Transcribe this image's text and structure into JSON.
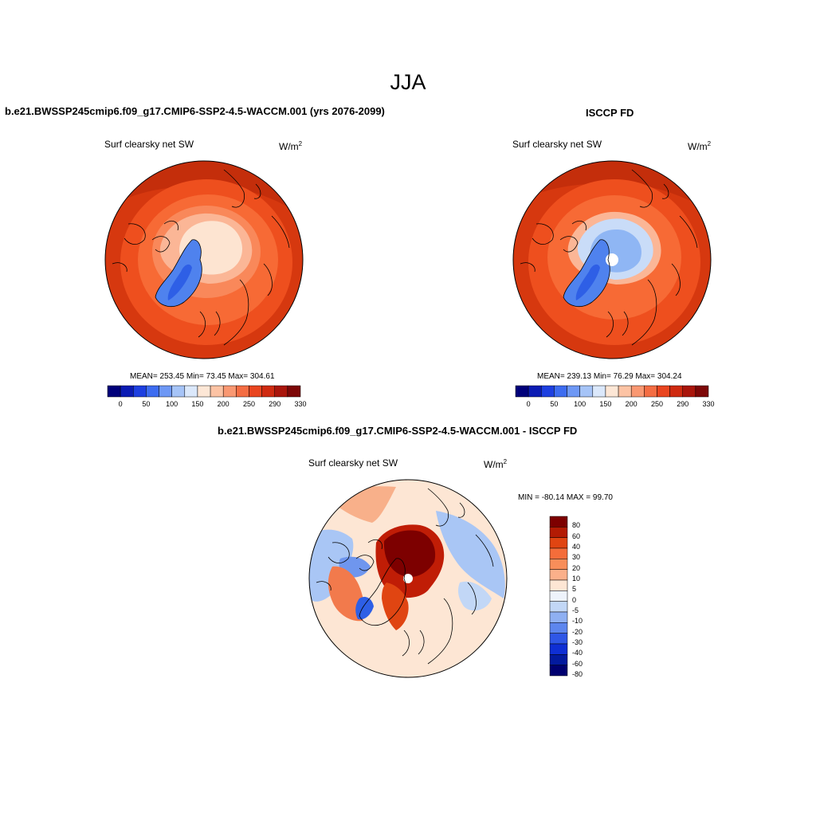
{
  "page": {
    "title": "JJA"
  },
  "panels": [
    {
      "id": "model",
      "case_title": "b.e21.BWSSP245cmip6.f09_g17.CMIP6-SSP2-4.5-WACCM.001 (yrs 2076-2099)",
      "variable": "Surf clearsky net SW",
      "units_base": "W/m",
      "units_exp": "2",
      "stats": "MEAN= 253.45  Min=  73.45  Max= 304.61",
      "mean": 253.45,
      "min": 73.45,
      "max": 304.61
    },
    {
      "id": "obs",
      "case_title": "ISCCP FD",
      "variable": "Surf clearsky net SW",
      "units_base": "W/m",
      "units_exp": "2",
      "stats": "MEAN= 239.13  Min=  76.29  Max= 304.24",
      "mean": 239.13,
      "min": 76.29,
      "max": 304.24
    },
    {
      "id": "diff",
      "case_title": "b.e21.BWSSP245cmip6.f09_g17.CMIP6-SSP2-4.5-WACCM.001 - ISCCP FD",
      "variable": "Surf clearsky net SW",
      "units_base": "W/m",
      "units_exp": "2",
      "stats": "MIN = -80.14 MAX =  99.70",
      "min": -80.14,
      "max": 99.7
    }
  ],
  "abs_colorbar": {
    "colors": [
      "#00007a",
      "#0b1bb3",
      "#1d3fe0",
      "#3d6cf0",
      "#6e98f5",
      "#a6c4f7",
      "#dbe8fb",
      "#fde7d6",
      "#fcc3a4",
      "#f99872",
      "#f46d43",
      "#e9451f",
      "#cf2a10",
      "#a9150b",
      "#7d0707"
    ],
    "tick_labels": [
      "0",
      "50",
      "100",
      "150",
      "200",
      "250",
      "290",
      "330"
    ]
  },
  "diff_colorbar": {
    "colors": [
      "#7d0000",
      "#b31b04",
      "#e04512",
      "#f46d3a",
      "#f88e5a",
      "#fbb08a",
      "#fde6d4",
      "#eef3fb",
      "#c2d7f6",
      "#8fb0f2",
      "#5d86ee",
      "#2f57e6",
      "#0f2fd4",
      "#031a9e",
      "#000070"
    ],
    "tick_labels": [
      "80",
      "60",
      "40",
      "30",
      "20",
      "10",
      "5",
      "0",
      "-5",
      "-10",
      "-20",
      "-30",
      "-40",
      "-60",
      "-80"
    ]
  },
  "map_style": {
    "model_bands": [
      "#d6380f",
      "#ee4f1e",
      "#f76a35",
      "#f9885a",
      "#fbb696",
      "#fde4d1"
    ],
    "obs_bands": [
      "#d6380f",
      "#ee4f1e",
      "#f76a35",
      "#fbb696",
      "#c9dcf8",
      "#8fb6f4"
    ],
    "land_blue": "#4f82ee",
    "land_blue_dark": "#2e5fe6",
    "diff_base": "#fde6d4",
    "diff_blue": "#a9c6f5",
    "diff_blue2": "#6f96ee",
    "diff_red": "#c01d06",
    "diff_red2": "#7d0000",
    "diff_orange": "#f27a4c"
  }
}
